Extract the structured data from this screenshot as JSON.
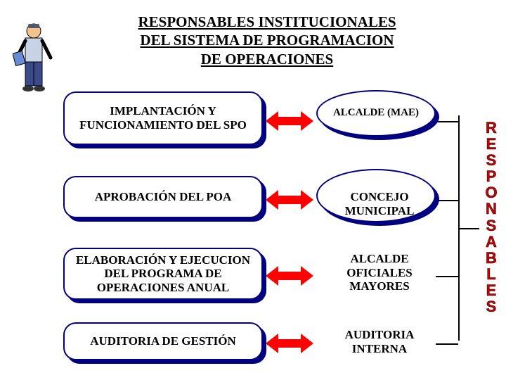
{
  "title": {
    "line1": "RESPONSABLES INSTITUCIONALES",
    "line2": "DEL SISTEMA DE PROGRAMACION",
    "line3": "DE OPERACIONES",
    "fontsize": 21,
    "color": "#000000"
  },
  "verticalLabel": {
    "text": "RESPONSABLES",
    "color": "#cc0000",
    "fontsize": 22
  },
  "rows": [
    {
      "rect": "IMPLANTACIÓN Y FUNCIONAMIENTO DEL SPO",
      "ellipse": "ALCALDE (MAE)",
      "rectTop": 130,
      "rectHeight": 76,
      "ellipseTop": 128,
      "ellipseHeight": 66,
      "arrowTop": 158,
      "hasEllipse": true,
      "rightText": null
    },
    {
      "rect": "APROBACIÓN DEL POA",
      "ellipse": null,
      "rectTop": 250,
      "rectHeight": 60,
      "ellipseTop": 240,
      "ellipseHeight": 76,
      "arrowTop": 270,
      "hasEllipse": true,
      "rightText": "CONCEJO MUNICIPAL",
      "rightTextTop": 270
    },
    {
      "rect": "ELABORACIÓN Y EJECUCION DEL PROGRAMA DE OPERACIONES ANUAL",
      "ellipse": null,
      "rectTop": 352,
      "rectHeight": 74,
      "ellipseTop": 344,
      "ellipseHeight": 82,
      "arrowTop": 378,
      "hasEllipse": false,
      "rightText": "ALCALDE OFICIALES MAYORES",
      "rightTextTop": 358
    },
    {
      "rect": "AUDITORIA DE GESTIÓN",
      "ellipse": null,
      "rectTop": 458,
      "rectHeight": 54,
      "ellipseTop": 448,
      "ellipseHeight": 66,
      "arrowTop": 474,
      "hasEllipse": false,
      "rightText": "AUDITORIA INTERNA",
      "rightTextTop": 466
    }
  ],
  "layout": {
    "rectLeft": 90,
    "rectWidth": 284,
    "ellipseLeft": 450,
    "ellipseWidth": 170,
    "arrowLeft": 378,
    "arrowWidth": 68,
    "shadowOffset": 5,
    "rectFontsize": 17,
    "ellipseFontsize": 15,
    "rightTextFontsize": 17,
    "rightTextLeft": 460,
    "rightTextWidth": 160
  },
  "connector": {
    "vlineLeft": 652,
    "vlineTop": 164,
    "vlineHeight": 320,
    "hlineWidth": 30
  },
  "colors": {
    "navy": "#000080",
    "red": "#ff0000",
    "black": "#000000",
    "white": "#ffffff"
  }
}
